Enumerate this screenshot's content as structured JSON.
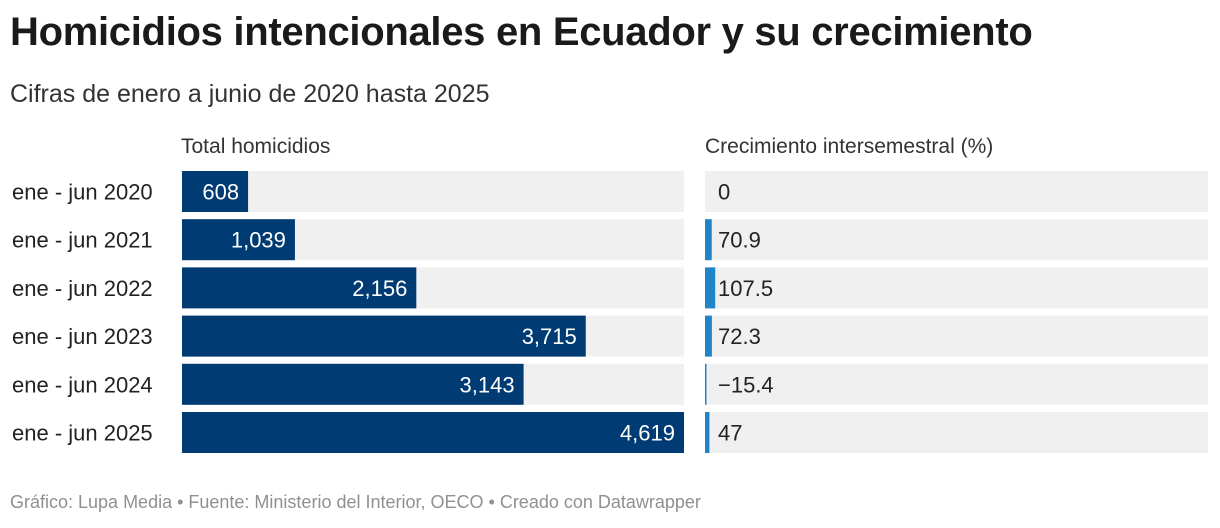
{
  "title": "Homicidios intencionales en Ecuador y su crecimiento",
  "subtitle": "Cifras de enero a junio de 2020 hasta 2025",
  "footer": "Gráfico: Lupa Media • Fuente: Ministerio del Interior, OECO • Creado con Datawrapper",
  "colors": {
    "bar": "#003b73",
    "growth_bar": "#1f84c8",
    "row_bg": "#f0f0f0"
  },
  "chart_data": {
    "type": "bar",
    "orientation": "horizontal",
    "categories": [
      "ene - jun 2020",
      "ene - jun 2021",
      "ene - jun 2022",
      "ene - jun 2023",
      "ene - jun 2024",
      "ene - jun 2025"
    ],
    "series": [
      {
        "name": "Total homicidios",
        "values": [
          608,
          1039,
          2156,
          3715,
          3143,
          4619
        ],
        "labels": [
          "608",
          "1,039",
          "2,156",
          "3,715",
          "3,143",
          "4,619"
        ],
        "xlim": [
          0,
          4619
        ]
      },
      {
        "name": "Crecimiento intersemestral (%)",
        "values": [
          0,
          70.9,
          107.5,
          72.3,
          -15.4,
          47
        ],
        "labels": [
          "0",
          "70.9",
          "107.5",
          "72.3",
          "−15.4",
          "47"
        ]
      }
    ]
  }
}
